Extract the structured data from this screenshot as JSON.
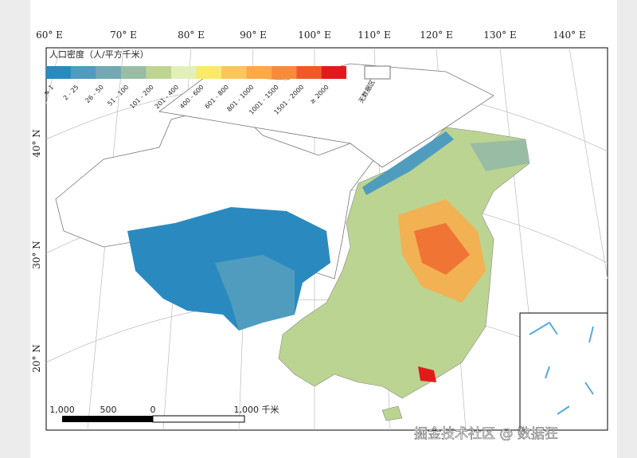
{
  "map": {
    "lon_labels": [
      "60° E",
      "70° E",
      "80° E",
      "90° E",
      "100° E",
      "110° E",
      "120° E",
      "130° E",
      "140° E"
    ],
    "lat_labels": [
      "40° N",
      "30° N",
      "20° N"
    ],
    "legend": {
      "title": "人口密度（人/平方千米）",
      "classes": [
        {
          "label": "≤ 1",
          "color": "#2a8ac0"
        },
        {
          "label": "2 - 25",
          "color": "#4f9cbf"
        },
        {
          "label": "26 - 50",
          "color": "#74a9b4"
        },
        {
          "label": "51 - 100",
          "color": "#98bda4"
        },
        {
          "label": "101 - 200",
          "color": "#bdd492"
        },
        {
          "label": "201 - 400",
          "color": "#e2f0b8"
        },
        {
          "label": "400 - 600",
          "color": "#fbe96a"
        },
        {
          "label": "601 - 800",
          "color": "#fcc65a"
        },
        {
          "label": "801 - 1000",
          "color": "#fbaa46"
        },
        {
          "label": "1001 - 1500",
          "color": "#f88b3a"
        },
        {
          "label": "1501 - 2000",
          "color": "#f05a28"
        },
        {
          "label": "≥ 2000",
          "color": "#e31a1c"
        }
      ],
      "nodata_label": "无数据区"
    },
    "scale_bar": {
      "labels": [
        "1,000",
        "500",
        "0",
        "1,000 千米"
      ]
    },
    "watermark": "掘金技术社区 @ 数据狂"
  }
}
